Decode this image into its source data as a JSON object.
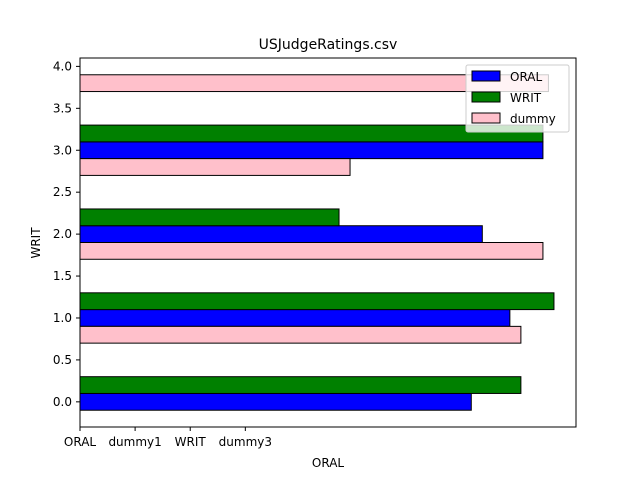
{
  "chart_data": {
    "type": "bar",
    "orientation": "horizontal",
    "title": "USJudgeRatings.csv",
    "xlabel": "ORAL",
    "ylabel": "WRIT",
    "xlim": [
      0,
      9.0
    ],
    "ylim": [
      -0.3,
      4.1
    ],
    "yticks": [
      0.0,
      0.5,
      1.0,
      1.5,
      2.0,
      2.5,
      3.0,
      3.5,
      4.0
    ],
    "ytick_labels": [
      "0.0",
      "0.5",
      "1.0",
      "1.5",
      "2.0",
      "2.5",
      "3.0",
      "3.5",
      "4.0"
    ],
    "xticks": [
      0,
      1,
      2,
      3
    ],
    "xtick_labels": [
      "ORAL",
      "dummy1",
      "WRIT",
      "dummy3"
    ],
    "bar_height": 0.2,
    "grid": false,
    "legend_position": "top-right",
    "series": [
      {
        "name": "ORAL",
        "color": "#0000ff",
        "bars": [
          {
            "y": 0.0,
            "value": 7.1
          },
          {
            "y": 1.0,
            "value": 7.8
          },
          {
            "y": 2.0,
            "value": 7.3
          },
          {
            "y": 3.0,
            "value": 8.4
          }
        ]
      },
      {
        "name": "WRIT",
        "color": "#008000",
        "bars": [
          {
            "y": 0.2,
            "value": 8.0
          },
          {
            "y": 1.2,
            "value": 8.6
          },
          {
            "y": 2.2,
            "value": 4.7
          },
          {
            "y": 3.2,
            "value": 8.4
          }
        ]
      },
      {
        "name": "dummy",
        "color": "#ffc0cb",
        "bars": [
          {
            "y": 0.8,
            "value": 8.0
          },
          {
            "y": 1.8,
            "value": 8.4
          },
          {
            "y": 2.8,
            "value": 4.9
          },
          {
            "y": 3.8,
            "value": 8.5
          }
        ]
      }
    ]
  }
}
